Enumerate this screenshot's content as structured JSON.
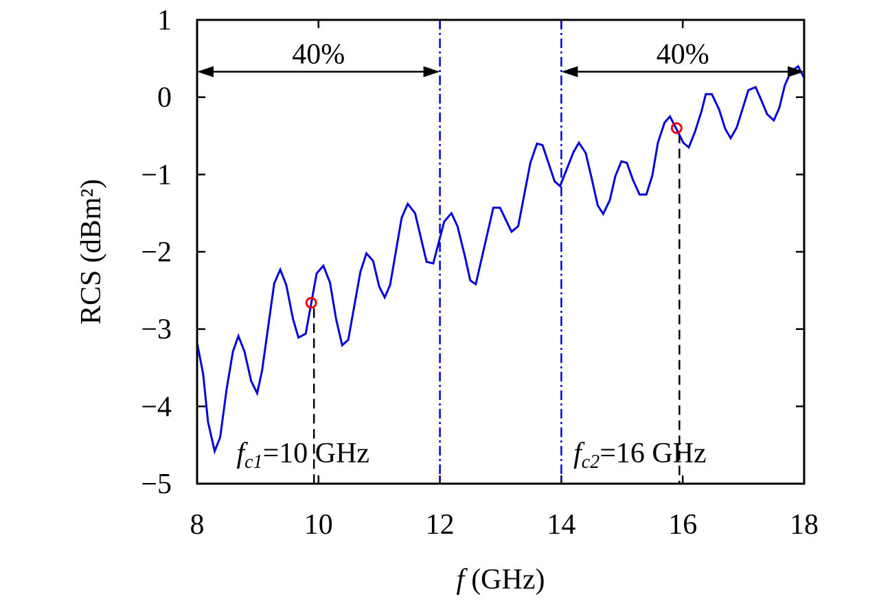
{
  "chart_data": {
    "type": "line",
    "xlabel_italic": "f",
    "xlabel": "(GHz)",
    "ylabel": "RCS (dBm²)",
    "xlim": [
      8,
      18
    ],
    "ylim": [
      -5,
      1
    ],
    "xticks": [
      "8",
      "10",
      "12",
      "14",
      "16",
      "18"
    ],
    "yticks": [
      "1",
      "0",
      "−1",
      "−2",
      "−3",
      "−4",
      "−5"
    ],
    "grid": false,
    "series": [
      {
        "color": "#0000dd",
        "x": [
          8.0,
          8.1,
          8.18,
          8.29,
          8.38,
          8.49,
          8.59,
          8.68,
          8.78,
          8.89,
          8.99,
          9.07,
          9.27,
          9.37,
          9.47,
          9.58,
          9.67,
          9.79,
          9.97,
          10.08,
          10.19,
          10.29,
          10.39,
          10.49,
          10.69,
          10.79,
          10.9,
          11.0,
          11.09,
          11.18,
          11.37,
          11.47,
          11.59,
          11.78,
          11.89,
          12.07,
          12.19,
          12.29,
          12.41,
          12.5,
          12.59,
          12.81,
          12.88,
          12.99,
          13.18,
          13.29,
          13.49,
          13.6,
          13.69,
          13.89,
          13.98,
          14.2,
          14.29,
          14.4,
          14.5,
          14.6,
          14.69,
          14.8,
          14.89,
          14.99,
          15.08,
          15.18,
          15.29,
          15.4,
          15.5,
          15.59,
          15.7,
          15.79,
          15.87,
          16.01,
          16.1,
          16.2,
          16.31,
          16.38,
          16.48,
          16.6,
          16.7,
          16.79,
          16.89,
          16.99,
          17.08,
          17.2,
          17.29,
          17.39,
          17.5,
          17.59,
          17.68,
          17.78,
          17.9,
          18.0
        ],
        "y": [
          -3.18,
          -3.58,
          -4.2,
          -4.58,
          -4.4,
          -3.76,
          -3.29,
          -3.09,
          -3.29,
          -3.67,
          -3.83,
          -3.54,
          -2.41,
          -2.23,
          -2.43,
          -2.87,
          -3.11,
          -3.06,
          -2.28,
          -2.18,
          -2.4,
          -2.87,
          -3.21,
          -3.14,
          -2.26,
          -2.02,
          -2.12,
          -2.45,
          -2.59,
          -2.43,
          -1.56,
          -1.38,
          -1.5,
          -2.13,
          -2.15,
          -1.61,
          -1.5,
          -1.67,
          -2.05,
          -2.37,
          -2.42,
          -1.67,
          -1.43,
          -1.43,
          -1.74,
          -1.67,
          -0.85,
          -0.6,
          -0.62,
          -1.09,
          -1.15,
          -0.71,
          -0.59,
          -0.72,
          -1.05,
          -1.4,
          -1.51,
          -1.33,
          -1.02,
          -0.83,
          -0.85,
          -1.07,
          -1.26,
          -1.26,
          -1.01,
          -0.59,
          -0.33,
          -0.25,
          -0.37,
          -0.59,
          -0.65,
          -0.45,
          -0.18,
          0.04,
          0.04,
          -0.16,
          -0.41,
          -0.53,
          -0.39,
          -0.14,
          0.09,
          0.13,
          -0.03,
          -0.22,
          -0.3,
          -0.14,
          0.15,
          0.33,
          0.4,
          0.25
        ]
      }
    ],
    "markers": [
      {
        "x": 9.88,
        "y": -2.66,
        "color": "#ee0000"
      },
      {
        "x": 15.9,
        "y": -0.4,
        "color": "#ee0000"
      }
    ],
    "band_lines": {
      "x": [
        12,
        14
      ],
      "color": "#0000dd"
    },
    "arrows": [
      {
        "from": 8,
        "to": 12,
        "y": 0.33,
        "label": "40%"
      },
      {
        "from": 14,
        "to": 18,
        "y": 0.33,
        "label": "40%"
      }
    ],
    "annotations": [
      {
        "f": "f",
        "sub": "c1",
        "rest": "=10 GHz",
        "x": 8.65,
        "y": -4.6
      },
      {
        "f": "f",
        "sub": "c2",
        "rest": "=16 GHz",
        "x": 14.2,
        "y": -4.6
      }
    ]
  }
}
